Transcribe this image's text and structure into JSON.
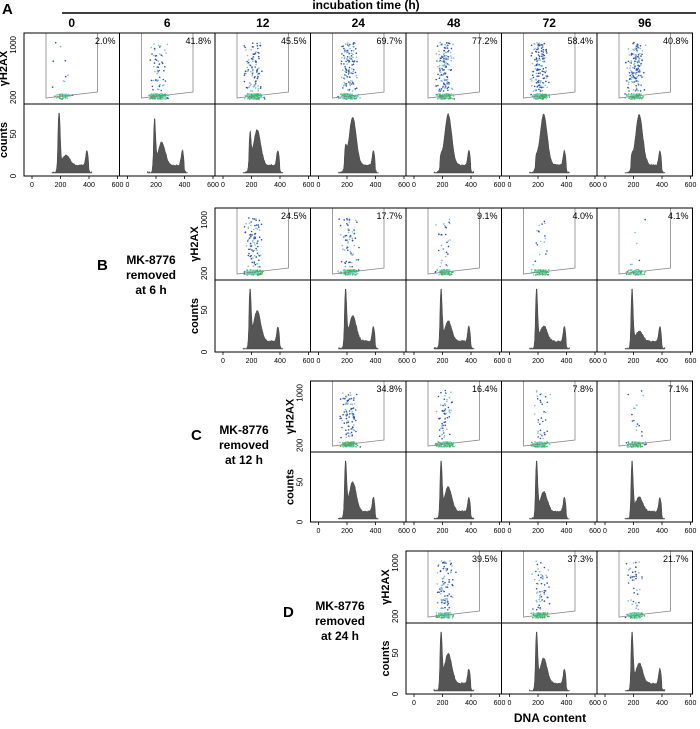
{
  "header": {
    "title": "incubation time (h)",
    "timepoints": [
      "0",
      "6",
      "12",
      "24",
      "48",
      "72",
      "96"
    ]
  },
  "axis": {
    "scatter_ylabel": "γH2AX",
    "scatter_ticks": [
      "1000",
      "200"
    ],
    "hist_ylabel": "counts",
    "hist_ticks": [
      "0",
      "50"
    ],
    "x_ticks": [
      "0",
      "200",
      "400",
      "600"
    ],
    "xlabel": "DNA content"
  },
  "panels": [
    {
      "letter": "A",
      "caption": [],
      "percents": [
        "2.0%",
        "41.8%",
        "45.5%",
        "69.7%",
        "77.2%",
        "58.4%",
        "40.8%"
      ]
    },
    {
      "letter": "B",
      "caption": [
        "MK-8776",
        "removed",
        "at 6 h"
      ],
      "percents": [
        "24.5%",
        "17.7%",
        "9.1%",
        "4.0%",
        "4.1%"
      ]
    },
    {
      "letter": "C",
      "caption": [
        "MK-8776",
        "removed",
        "at 12 h"
      ],
      "percents": [
        "34.8%",
        "16.4%",
        "7.8%",
        "7.1%"
      ]
    },
    {
      "letter": "D",
      "caption": [
        "MK-8776",
        "removed",
        "at 24 h"
      ],
      "percents": [
        "39.5%",
        "37.3%",
        "21.7%"
      ]
    }
  ]
}
